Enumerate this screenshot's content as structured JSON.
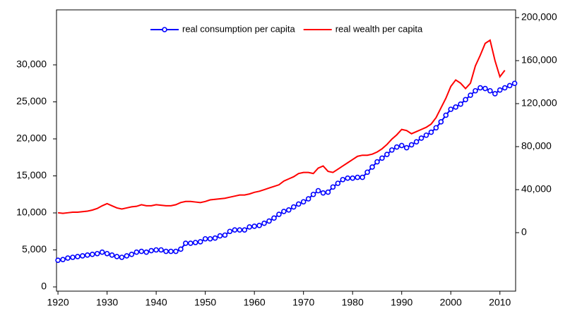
{
  "chart_data": {
    "type": "line",
    "x": [
      1920,
      1921,
      1922,
      1923,
      1924,
      1925,
      1926,
      1927,
      1928,
      1929,
      1930,
      1931,
      1932,
      1933,
      1934,
      1935,
      1936,
      1937,
      1938,
      1939,
      1940,
      1941,
      1942,
      1943,
      1944,
      1945,
      1946,
      1947,
      1948,
      1949,
      1950,
      1951,
      1952,
      1953,
      1954,
      1955,
      1956,
      1957,
      1958,
      1959,
      1960,
      1961,
      1962,
      1963,
      1964,
      1965,
      1966,
      1967,
      1968,
      1969,
      1970,
      1971,
      1972,
      1973,
      1974,
      1975,
      1976,
      1977,
      1978,
      1979,
      1980,
      1981,
      1982,
      1983,
      1984,
      1985,
      1986,
      1987,
      1988,
      1989,
      1990,
      1991,
      1992,
      1993,
      1994,
      1995,
      1996,
      1997,
      1998,
      1999,
      2000,
      2001,
      2002,
      2003,
      2004,
      2005,
      2006,
      2007,
      2008,
      2009,
      2010,
      2011,
      2012,
      2013
    ],
    "series": [
      {
        "name": "real consumption per capita",
        "color": "#0000ff",
        "marker": "circle",
        "values": [
          3600,
          3700,
          3900,
          4000,
          4100,
          4200,
          4300,
          4400,
          4500,
          4700,
          4500,
          4300,
          4100,
          4000,
          4200,
          4400,
          4700,
          4800,
          4700,
          4900,
          5000,
          5000,
          4800,
          4800,
          4800,
          5100,
          5900,
          5900,
          6000,
          6100,
          6500,
          6500,
          6600,
          6900,
          7000,
          7500,
          7700,
          7700,
          7700,
          8100,
          8200,
          8300,
          8600,
          8900,
          9300,
          9800,
          10200,
          10400,
          10800,
          11200,
          11500,
          11900,
          12500,
          13000,
          12700,
          12800,
          13500,
          14000,
          14500,
          14700,
          14700,
          14800,
          14800,
          15500,
          16200,
          16900,
          17400,
          17900,
          18500,
          18900,
          19100,
          18800,
          19200,
          19600,
          20100,
          20500,
          20900,
          21500,
          22300,
          23200,
          24000,
          24300,
          24700,
          25300,
          25900,
          26500,
          26900,
          26800,
          26500,
          26100,
          26600,
          26900,
          27200,
          27500
        ]
      },
      {
        "name": "real wealth per capita",
        "color": "#ff0000",
        "axis": "y2",
        "values": [
          18500,
          18000,
          18500,
          19000,
          19000,
          19500,
          20000,
          21000,
          22500,
          25000,
          27000,
          25000,
          23000,
          22000,
          23000,
          24000,
          24500,
          26000,
          25000,
          25000,
          26000,
          25500,
          25000,
          25000,
          26000,
          28000,
          29000,
          29000,
          28500,
          28000,
          29000,
          30500,
          31000,
          31500,
          32000,
          33000,
          34000,
          35000,
          35000,
          36000,
          37500,
          38500,
          40000,
          41500,
          43000,
          44500,
          48000,
          50000,
          52000,
          55000,
          56000,
          56000,
          55000,
          60000,
          62000,
          57000,
          56000,
          59000,
          62000,
          65000,
          68000,
          71000,
          72000,
          72000,
          73000,
          75000,
          78000,
          82000,
          87000,
          91000,
          96000,
          95000,
          92000,
          94000,
          96000,
          98000,
          101000,
          107000,
          116000,
          125000,
          136000,
          142000,
          139000,
          134000,
          139000,
          155000,
          165000,
          176000,
          179000,
          160000,
          145000,
          151000,
          null,
          null
        ]
      }
    ],
    "xlim": [
      1919.7,
      2013.2
    ],
    "xticks": [
      1920,
      1930,
      1940,
      1950,
      1960,
      1970,
      1980,
      1990,
      2000,
      2010
    ],
    "ylim": [
      -571,
      37430
    ],
    "yticks": [
      {
        "value": 0,
        "label": "0"
      },
      {
        "value": 5000,
        "label": "5,000"
      },
      {
        "value": 10000,
        "label": "10,000"
      },
      {
        "value": 15000,
        "label": "15,000"
      },
      {
        "value": 20000,
        "label": "20,000"
      },
      {
        "value": 25000,
        "label": "25,000"
      },
      {
        "value": 30000,
        "label": "30,000"
      }
    ],
    "y2lim": [
      -54400,
      207200
    ],
    "y2ticks": [
      {
        "value": 0,
        "label": "0"
      },
      {
        "value": 40000,
        "label": "40,000"
      },
      {
        "value": 80000,
        "label": "80,000"
      },
      {
        "value": 120000,
        "label": "120,000"
      },
      {
        "value": 160000,
        "label": "160,000"
      },
      {
        "value": 200000,
        "label": "200,000"
      }
    ],
    "grid": true
  }
}
